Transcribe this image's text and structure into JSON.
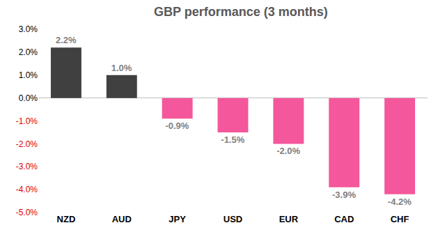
{
  "chart_data": {
    "type": "bar",
    "title": "GBP performance (3 months)",
    "categories": [
      "NZD",
      "AUD",
      "JPY",
      "USD",
      "EUR",
      "CAD",
      "CHF"
    ],
    "values": [
      2.2,
      1.0,
      -0.9,
      -1.5,
      -2.0,
      -3.9,
      -4.2
    ],
    "value_labels": [
      "2.2%",
      "1.0%",
      "-0.9%",
      "-1.5%",
      "-2.0%",
      "-3.9%",
      "-4.2%"
    ],
    "colors": [
      "#404040",
      "#404040",
      "#f4579b",
      "#f4579b",
      "#f4579b",
      "#f4579b",
      "#f4579b"
    ],
    "ylim": [
      -5,
      3
    ],
    "yticks": [
      {
        "value": -5,
        "label": "-5.0%"
      },
      {
        "value": -4,
        "label": "-4.0%"
      },
      {
        "value": -3,
        "label": "-3.0%"
      },
      {
        "value": -2,
        "label": "-2.0%"
      },
      {
        "value": -1,
        "label": "-1.0%"
      },
      {
        "value": 0,
        "label": "0.0%"
      },
      {
        "value": 1,
        "label": "1.0%"
      },
      {
        "value": 2,
        "label": "2.0%"
      },
      {
        "value": 3,
        "label": "3.0%"
      }
    ],
    "grid": false,
    "data_labels": true
  }
}
